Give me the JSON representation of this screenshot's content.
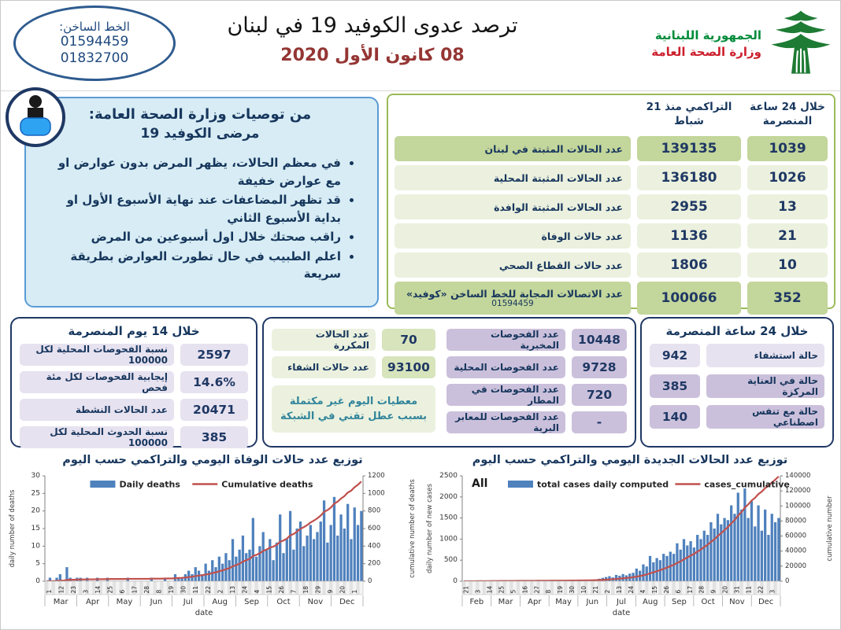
{
  "colors": {
    "navy": "#17365d",
    "bar_blue": "#4f81bd",
    "line_red": "#c0504d",
    "green_border": "#9bbb59",
    "green_medium": "#c3d69b",
    "green_light": "#ebf1de",
    "lavender_light": "#e7e2f0",
    "lavender_medium": "#cbc0db",
    "rec_bg": "#d7ecf4",
    "date_red": "#943634",
    "ministry_green": "#008b3a",
    "ministry_red": "#cc1f2d",
    "note_teal": "#31849b"
  },
  "header": {
    "hotline_label": "الخط الساخن:",
    "hotline_numbers": [
      "01594459",
      "01832700"
    ],
    "title": "ترصد عدوى الكوفيد 19 في لبنان",
    "date": "08 كانون الأول 2020",
    "ministry_line1": "الجمهورية اللبنانية",
    "ministry_line2": "وزارة الصحة العامة"
  },
  "recommendations": {
    "title_line1": "من توصيات وزارة الصحة العامة:",
    "title_line2": "مرضى الكوفيد 19",
    "bullets": [
      "في معظم الحالات، يظهر المرض بدون عوارض او مع عوارض خفيفة",
      "قد تظهر المضاعفات عند نهاية الأسبوع الأول او بداية الأسبوع الثاني",
      "راقب صحتك خلال اول أسبوعين من المرض",
      "اعلم الطبيب في حال تطورت العوارض بطريقة سريعة"
    ]
  },
  "main_table": {
    "header_24h": "خلال 24 ساعة المنصرمة",
    "header_cumulative": "التراكمي منذ 21 شباط",
    "rows": [
      {
        "label": "عدد الحالات المثبتة في لبنان",
        "cumulative": "139135",
        "last24": "1039",
        "shade": "medium"
      },
      {
        "label": "عدد الحالات المثبتة المحلية",
        "cumulative": "136180",
        "last24": "1026",
        "shade": "light"
      },
      {
        "label": "عدد الحالات المثبتة الوافدة",
        "cumulative": "2955",
        "last24": "13",
        "shade": "light"
      },
      {
        "label": "عدد حالات الوفاة",
        "cumulative": "1136",
        "last24": "21",
        "shade": "light"
      },
      {
        "label": "عدد حالات القطاع الصحي",
        "cumulative": "1806",
        "last24": "10",
        "shade": "light"
      },
      {
        "label": "عدد الاتصالات المجابة  للخط الساخن «كوفيد»",
        "label_sub": "01594459",
        "cumulative": "100066",
        "last24": "352",
        "shade": "medium"
      }
    ]
  },
  "box_14days": {
    "title": "خلال 14 يوم المنصرمة",
    "rows": [
      {
        "label": "نسبة الفحوصات  المحلية لكل 100000",
        "value": "2597"
      },
      {
        "label": "إيجابية الفحوصات لكل مئة فحص",
        "value": "14.6%"
      },
      {
        "label": "عدد الحالات النشطة",
        "value": "20471"
      },
      {
        "label": "نسبة الحدوث المحلية لكل 100000",
        "value": "385"
      }
    ]
  },
  "box_middle": {
    "green_rows": [
      {
        "label": "عدد الحالات المكررة",
        "value": "70"
      },
      {
        "label": "عدد حالات الشفاء",
        "value": "93100"
      }
    ],
    "note_line1": "معطيات اليوم غير مكتملة",
    "note_line2": "بسبب عطل تقني في الشبكة",
    "purple_rows": [
      {
        "label": "عدد الفحوصات المخبرية",
        "value": "10448"
      },
      {
        "label": "عدد الفحوصات المحلية",
        "value": "9728"
      },
      {
        "label": "عدد الفحوصات في المطار",
        "value": "720"
      },
      {
        "label": "عدد الفحوصات للمعابر البرية",
        "value": "-"
      }
    ]
  },
  "box_24h": {
    "title": "خلال 24 ساعة المنصرمة",
    "rows": [
      {
        "label": "حالة استشفاء",
        "value": "942",
        "shade": "light"
      },
      {
        "label": "حالة في العناية المركزة",
        "value": "385",
        "shade": "medium"
      },
      {
        "label": "حالة مع تنفس اصطناعي",
        "value": "140",
        "shade": "medium"
      }
    ]
  },
  "chart_data": [
    {
      "type": "bar",
      "title": "توزيع عدد حالات  الوفاة اليومي والتراكمي حسب اليوم",
      "corner_label": "",
      "legend": [
        {
          "label": "Daily deaths",
          "swatch": "bar",
          "color": "#4f81bd"
        },
        {
          "label": "Cumulative deaths",
          "swatch": "line",
          "color": "#c0504d"
        }
      ],
      "xlabel": "date",
      "ylabel_left": "daily number of deaths",
      "ylabel_right": "cumulative number of deaths",
      "ylim_left": [
        0,
        30
      ],
      "ystep_left": 5,
      "ylim_right": [
        0,
        1200
      ],
      "ystep_right": 200,
      "cumulative_final": 1136,
      "day_ticks": [
        "1",
        "12",
        "23",
        "3",
        "14",
        "25",
        "6",
        "17",
        "28",
        "8",
        "19",
        "30",
        "11",
        "22",
        "2",
        "13",
        "24",
        "4",
        "15",
        "26",
        "7",
        "18",
        "29",
        "9",
        "20",
        "1"
      ],
      "months": [
        "Mar",
        "Apr",
        "May",
        "Jun",
        "Jul",
        "Aug",
        "Sep",
        "Oct",
        "Nov",
        "Dec"
      ],
      "values": [
        0,
        1,
        0,
        1,
        2,
        0,
        4,
        1,
        0,
        1,
        1,
        0,
        1,
        0,
        0,
        1,
        0,
        0,
        1,
        0,
        0,
        0,
        0,
        0,
        1,
        0,
        0,
        0,
        0,
        0,
        0,
        1,
        0,
        0,
        0,
        1,
        0,
        0,
        2,
        1,
        1,
        2,
        3,
        2,
        4,
        3,
        2,
        5,
        3,
        6,
        4,
        7,
        5,
        8,
        6,
        12,
        7,
        9,
        13,
        8,
        9,
        18,
        7,
        10,
        14,
        9,
        12,
        6,
        11,
        19,
        8,
        12,
        20,
        9,
        15,
        17,
        10,
        13,
        16,
        12,
        14,
        17,
        23,
        11,
        16,
        24,
        13,
        19,
        15,
        22,
        12,
        21,
        16,
        20
      ]
    },
    {
      "type": "bar",
      "title": "توزيع عدد الحالات الجديدة اليومي والتراكمي حسب اليوم",
      "corner_label": "All",
      "legend": [
        {
          "label": "total cases daily computed",
          "swatch": "bar",
          "color": "#4f81bd"
        },
        {
          "label": "cases_cumulative",
          "swatch": "line",
          "color": "#c0504d"
        }
      ],
      "xlabel": "date",
      "ylabel_left": "daily number of new cases",
      "ylabel_right": "cumulative number",
      "ylim_left": [
        0,
        2500
      ],
      "ystep_left": 500,
      "ylim_right": [
        0,
        140000
      ],
      "ystep_right": 20000,
      "cumulative_final": 139135,
      "day_ticks": [
        "21",
        "3",
        "14",
        "25",
        "5",
        "16",
        "27",
        "8",
        "19",
        "30",
        "10",
        "21",
        "2",
        "13",
        "24",
        "4",
        "15",
        "26",
        "6",
        "17",
        "28",
        "9",
        "20",
        "31",
        "11",
        "22",
        "3"
      ],
      "months": [
        "Feb",
        "Mar",
        "Apr",
        "May",
        "Jun",
        "Jul",
        "Aug",
        "Sep",
        "Oct",
        "Nov",
        "Dec"
      ],
      "values": [
        2,
        5,
        8,
        10,
        15,
        20,
        12,
        8,
        6,
        10,
        15,
        20,
        10,
        8,
        12,
        6,
        10,
        8,
        5,
        10,
        8,
        5,
        30,
        10,
        6,
        8,
        12,
        10,
        8,
        6,
        10,
        15,
        12,
        20,
        25,
        18,
        15,
        30,
        25,
        40,
        60,
        80,
        100,
        120,
        90,
        150,
        130,
        170,
        140,
        180,
        200,
        300,
        250,
        400,
        350,
        600,
        450,
        550,
        500,
        650,
        600,
        700,
        650,
        900,
        750,
        1000,
        850,
        950,
        800,
        1100,
        1000,
        1200,
        1100,
        1400,
        1250,
        1600,
        1350,
        1500,
        1450,
        1800,
        1600,
        2100,
        1700,
        2200,
        1500,
        1900,
        1300,
        1800,
        1200,
        1700,
        1100,
        1600,
        1400,
        1500
      ]
    }
  ]
}
